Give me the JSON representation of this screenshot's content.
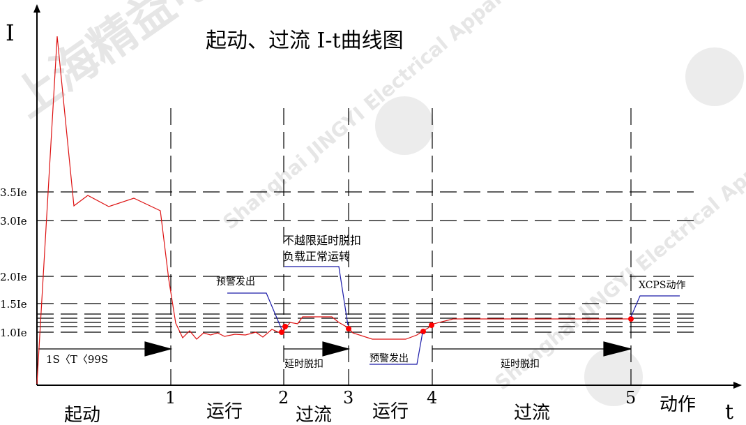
{
  "title": "起动、过流 I-t曲线图",
  "watermark": {
    "cn": "上海精益电器厂有限公司",
    "en": "Shanghai JINGYI Electrical Apparatus Factory Co.,Ltd."
  },
  "axes": {
    "y_label": "I",
    "x_label": "t",
    "y_ticks": [
      "3.5Ie",
      "3.0Ie",
      "2.0Ie",
      "1.5Ie",
      "1.0Ie"
    ],
    "x_ticks": [
      "1",
      "2",
      "3",
      "4",
      "5"
    ]
  },
  "phases": [
    "起动",
    "运行",
    "过流",
    "运行",
    "过流",
    "动作"
  ],
  "annotations": {
    "warning_1": "预警发出",
    "no_exceed_line1": "不越限延时脱扣",
    "no_exceed_line2": "负载正常运转",
    "xcps_action": "XCPS动作",
    "start_time": "1S〈T〈99S",
    "delay_trip_1": "延时脱扣",
    "warning_2": "预警发出",
    "delay_trip_2": "延时脱扣"
  },
  "colors": {
    "curve": "#dd1111",
    "points": "#ff0000",
    "leader": "#1a1aa8",
    "lines": "#000000"
  }
}
